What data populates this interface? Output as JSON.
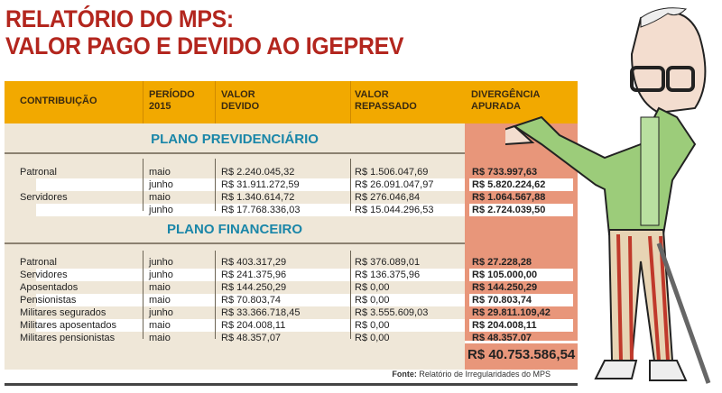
{
  "title": {
    "line1": "RELATÓRIO DO MPS:",
    "line2": "VALOR PAGO E DEVIDO AO IGEPREV"
  },
  "columns": [
    "CONTRIBUIÇÃO",
    "PERÍODO\n2015",
    "VALOR\nDEVIDO",
    "VALOR\nREPASSADO",
    "DIVERGÊNCIA\nAPURADA"
  ],
  "sections": [
    {
      "name": "PLANO PREVIDENCIÁRIO",
      "rows": [
        [
          "Patronal",
          "maio",
          "R$ 2.240.045,32",
          "R$ 1.506.047,69",
          "R$ 733.997,63"
        ],
        [
          "",
          "junho",
          "R$ 31.911.272,59",
          "R$ 26.091.047,97",
          "R$ 5.820.224,62"
        ],
        [
          "Servidores",
          "maio",
          "R$ 1.340.614,72",
          "R$ 276.046,84",
          "R$ 1.064.567,88"
        ],
        [
          "",
          "junho",
          "R$ 17.768.336,03",
          "R$ 15.044.296,53",
          "R$ 2.724.039,50"
        ]
      ]
    },
    {
      "name": "PLANO FINANCEIRO",
      "rows": [
        [
          "Patronal",
          "junho",
          "R$ 403.317,29",
          "R$ 376.089,01",
          "R$ 27.228,28"
        ],
        [
          "Servidores",
          "junho",
          "R$ 241.375,96",
          "R$ 136.375,96",
          "R$ 105.000,00"
        ],
        [
          "Aposentados",
          "maio",
          "R$ 144.250,29",
          "R$ 0,00",
          "R$ 144.250,29"
        ],
        [
          "Pensionistas",
          "maio",
          "R$ 70.803,74",
          "R$ 0,00",
          "R$ 70.803,74"
        ],
        [
          "Militares segurados",
          "junho",
          "R$ 33.366.718,45",
          "R$ 3.555.609,03",
          "R$ 29.811.109,42"
        ],
        [
          "Militares aposentados",
          "maio",
          "R$ 204.008,11",
          "R$ 0,00",
          "R$ 204.008,11"
        ],
        [
          "Militares pensionistas",
          "maio",
          "R$ 48.357,07",
          "R$ 0,00",
          "R$ 48.357,07"
        ]
      ]
    }
  ],
  "total": "R$ 40.753.586,54",
  "source": {
    "label": "Fonte:",
    "text": "Relatório de Irregularidades do MPS"
  },
  "colors": {
    "title": "#b3261e",
    "header": "#f2a900",
    "section": "#1a86a8",
    "divergence": "#e8967a",
    "body": "#efe7d8"
  }
}
